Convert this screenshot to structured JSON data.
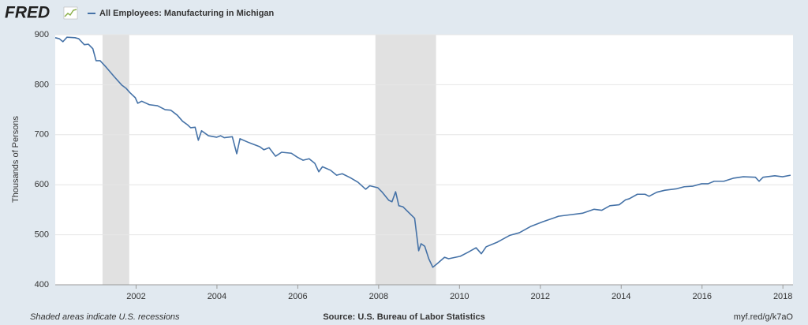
{
  "chart_data": {
    "type": "line",
    "logo": "FRED",
    "ylabel": "Thousands of Persons",
    "note": "Shaded areas indicate U.S. recessions",
    "source": "Source: U.S. Bureau of Labor Statistics",
    "link": "myf.red/g/k7aO",
    "xlim": [
      2000,
      2018.25
    ],
    "xticks": [
      2002,
      2004,
      2006,
      2008,
      2010,
      2012,
      2014,
      2016,
      2018
    ],
    "ylim": [
      400,
      900
    ],
    "yticks": [
      400,
      500,
      600,
      700,
      800,
      900
    ],
    "grid": true,
    "recessions": [
      [
        2001.17,
        2001.83
      ],
      [
        2007.92,
        2009.42
      ]
    ],
    "x": [
      2000.0,
      2000.1,
      2000.19,
      2000.29,
      2000.49,
      2000.58,
      2000.72,
      2000.82,
      2000.93,
      2001.01,
      2001.11,
      2001.26,
      2001.46,
      2001.65,
      2001.75,
      2001.85,
      2001.98,
      2002.04,
      2002.14,
      2002.33,
      2002.53,
      2002.72,
      2002.86,
      2003.02,
      2003.15,
      2003.27,
      2003.35,
      2003.46,
      2003.54,
      2003.62,
      2003.79,
      2003.99,
      2004.09,
      2004.18,
      2004.38,
      2004.49,
      2004.57,
      2004.77,
      2004.9,
      2005.06,
      2005.16,
      2005.29,
      2005.45,
      2005.6,
      2005.84,
      2005.99,
      2006.13,
      2006.28,
      2006.42,
      2006.52,
      2006.61,
      2006.81,
      2006.96,
      2007.1,
      2007.3,
      2007.49,
      2007.68,
      2007.78,
      2007.98,
      2008.09,
      2008.25,
      2008.33,
      2008.42,
      2008.5,
      2008.6,
      2008.75,
      2008.89,
      2008.99,
      2009.05,
      2009.14,
      2009.24,
      2009.34,
      2009.46,
      2009.63,
      2009.73,
      2010.02,
      2010.21,
      2010.41,
      2010.54,
      2010.66,
      2010.93,
      2011.25,
      2011.48,
      2011.77,
      2012.06,
      2012.35,
      2012.45,
      2012.74,
      2013.04,
      2013.33,
      2013.52,
      2013.72,
      2013.95,
      2014.11,
      2014.2,
      2014.4,
      2014.59,
      2014.69,
      2014.88,
      2015.08,
      2015.37,
      2015.56,
      2015.76,
      2015.99,
      2016.15,
      2016.3,
      2016.54,
      2016.77,
      2017.02,
      2017.32,
      2017.41,
      2017.51,
      2017.8,
      2017.99,
      2018.19
    ],
    "series": [
      {
        "name": "All Employees: Manufacturing in Michigan",
        "color": "#4572a7",
        "values": [
          894,
          892,
          886,
          895,
          894,
          892,
          880,
          881,
          872,
          848,
          848,
          835,
          816,
          799,
          793,
          784,
          774,
          763,
          767,
          760,
          758,
          750,
          749,
          739,
          727,
          720,
          714,
          715,
          689,
          708,
          698,
          695,
          698,
          694,
          696,
          662,
          692,
          685,
          681,
          676,
          670,
          674,
          657,
          665,
          663,
          655,
          649,
          652,
          643,
          626,
          636,
          629,
          619,
          622,
          614,
          605,
          591,
          598,
          594,
          585,
          569,
          566,
          586,
          558,
          556,
          544,
          533,
          468,
          482,
          477,
          452,
          435,
          443,
          455,
          452,
          457,
          465,
          474,
          462,
          476,
          485,
          499,
          504,
          517,
          526,
          534,
          537,
          540,
          543,
          551,
          549,
          558,
          560,
          570,
          572,
          581,
          581,
          577,
          585,
          589,
          592,
          596,
          597,
          602,
          602,
          607,
          607,
          613,
          616,
          615,
          607,
          615,
          618,
          616,
          619
        ]
      }
    ]
  }
}
